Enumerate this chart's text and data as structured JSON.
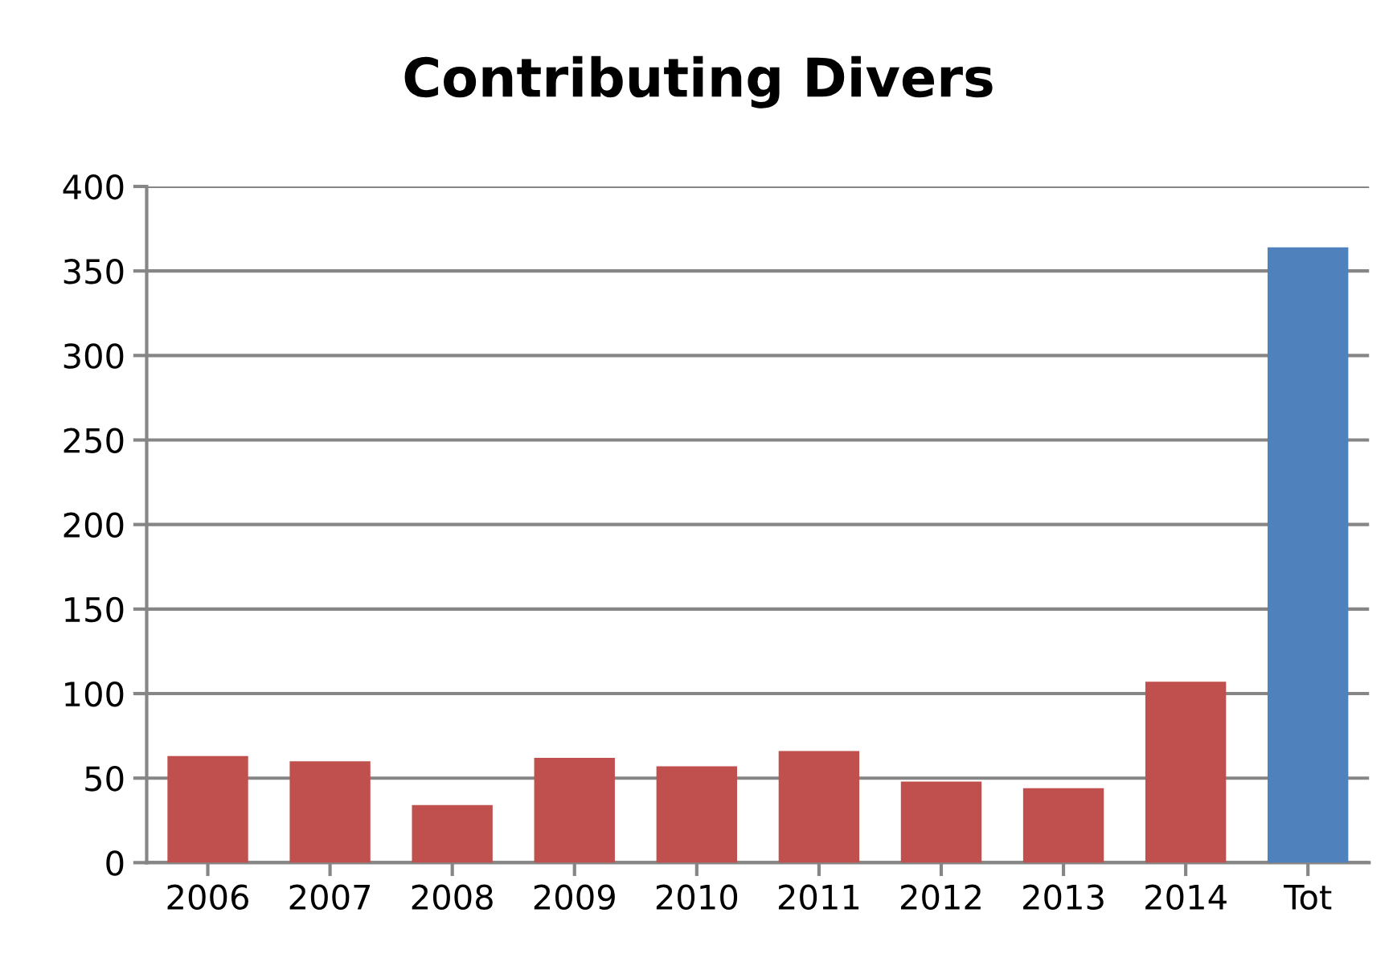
{
  "chart_data": {
    "type": "bar",
    "title": "Contributing Divers",
    "categories": [
      "2006",
      "2007",
      "2008",
      "2009",
      "2010",
      "2011",
      "2012",
      "2013",
      "2014",
      "Tot"
    ],
    "values": [
      63,
      60,
      34,
      62,
      57,
      66,
      48,
      44,
      107,
      364
    ],
    "colors": [
      "#c0504d",
      "#c0504d",
      "#c0504d",
      "#c0504d",
      "#c0504d",
      "#c0504d",
      "#c0504d",
      "#c0504d",
      "#c0504d",
      "#4f81bd"
    ],
    "ylim": [
      0,
      400
    ],
    "yticks": [
      0,
      50,
      100,
      150,
      200,
      250,
      300,
      350,
      400
    ],
    "grid": "y",
    "legend": false
  }
}
